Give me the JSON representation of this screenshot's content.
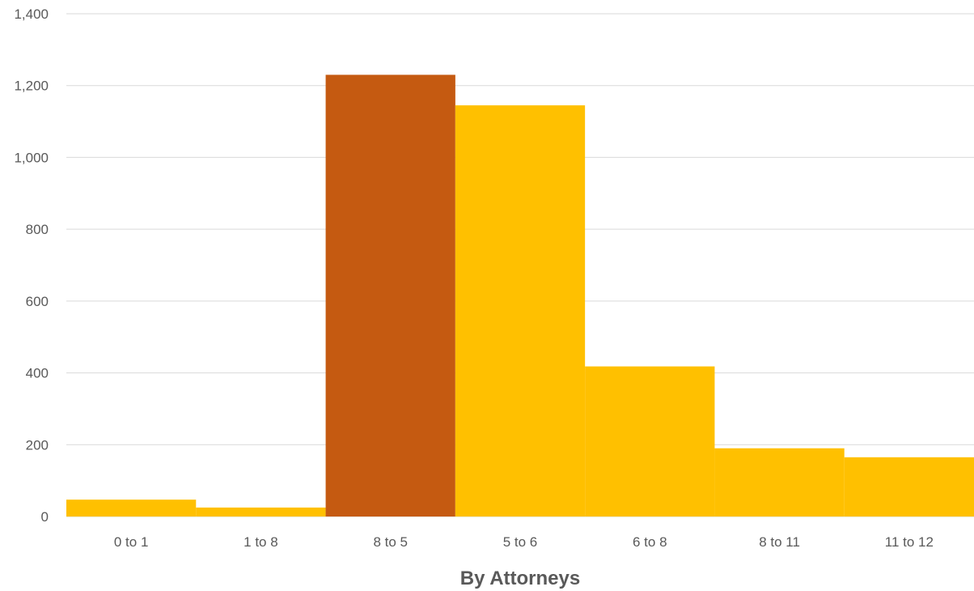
{
  "chart_data": {
    "type": "bar",
    "categories": [
      "0 to 1",
      "1 to 8",
      "8 to 5",
      "5 to 6",
      "6 to 8",
      "8 to 11",
      "11 to 12"
    ],
    "values": [
      47,
      25,
      1230,
      1145,
      418,
      190,
      165
    ],
    "highlight_index": 2,
    "colors": {
      "bar": "#FFC000",
      "highlight": "#C55A11",
      "grid": "#D9D9D9",
      "text": "#595959"
    },
    "title": "",
    "xlabel": "By Attorneys",
    "ylabel": "",
    "ylim": [
      0,
      1400
    ],
    "yticks": [
      0,
      200,
      400,
      600,
      800,
      1000,
      1200,
      1400
    ],
    "ytick_labels": [
      "0",
      "200",
      "400",
      "600",
      "800",
      "1,000",
      "1,200",
      "1,400"
    ],
    "grid": true,
    "bar_gap": 0
  }
}
